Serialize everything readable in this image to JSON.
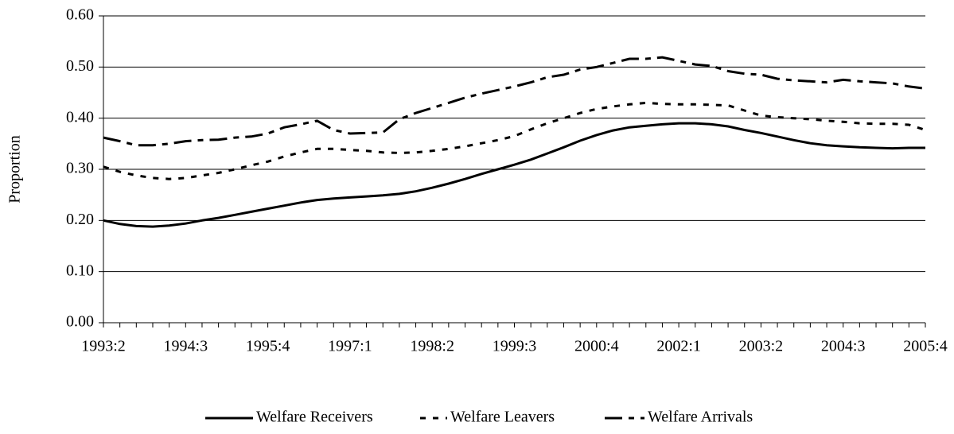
{
  "chart_data": {
    "type": "line",
    "y_label": "Proportion",
    "categories": [
      "1993:2",
      null,
      null,
      null,
      null,
      "1994:3",
      null,
      null,
      null,
      null,
      "1995:4",
      null,
      null,
      null,
      null,
      "1997:1",
      null,
      null,
      null,
      null,
      "1998:2",
      null,
      null,
      null,
      null,
      "1999:3",
      null,
      null,
      null,
      null,
      "2000:4",
      null,
      null,
      null,
      null,
      "2002:1",
      null,
      null,
      null,
      null,
      "2003:2",
      null,
      null,
      null,
      null,
      "2004:3",
      null,
      null,
      null,
      null,
      "2005:4"
    ],
    "ylim": [
      0,
      0.6
    ],
    "yticks": [
      {
        "value": 0,
        "label": "0.00"
      },
      {
        "value": 0.1,
        "label": "0.10"
      },
      {
        "value": 0.2,
        "label": "0.20"
      },
      {
        "value": 0.3,
        "label": "0.30"
      },
      {
        "value": 0.4,
        "label": "0.40"
      },
      {
        "value": 0.5,
        "label": "0.50"
      },
      {
        "value": 0.6,
        "label": "0.60"
      }
    ],
    "grid": true,
    "legend": "bottom",
    "series": [
      {
        "name": "Welfare Receivers",
        "color": "#000000",
        "dash": "solid",
        "values": [
          0.2,
          0.193,
          0.189,
          0.188,
          0.19,
          0.194,
          0.2,
          0.205,
          0.211,
          0.217,
          0.223,
          0.229,
          0.235,
          0.24,
          0.243,
          0.245,
          0.247,
          0.249,
          0.252,
          0.257,
          0.264,
          0.272,
          0.281,
          0.291,
          0.3,
          0.309,
          0.319,
          0.331,
          0.343,
          0.356,
          0.367,
          0.376,
          0.382,
          0.385,
          0.388,
          0.39,
          0.39,
          0.388,
          0.384,
          0.377,
          0.371,
          0.364,
          0.357,
          0.351,
          0.347,
          0.345,
          0.343,
          0.342,
          0.341,
          0.342,
          0.342
        ]
      },
      {
        "name": "Welfare Leavers",
        "color": "#000000",
        "dash": "short",
        "values": [
          0.305,
          0.295,
          0.288,
          0.283,
          0.281,
          0.283,
          0.288,
          0.293,
          0.3,
          0.308,
          0.315,
          0.325,
          0.333,
          0.34,
          0.34,
          0.338,
          0.336,
          0.333,
          0.332,
          0.333,
          0.336,
          0.34,
          0.345,
          0.351,
          0.357,
          0.365,
          0.378,
          0.39,
          0.4,
          0.41,
          0.418,
          0.423,
          0.427,
          0.43,
          0.428,
          0.427,
          0.427,
          0.426,
          0.425,
          0.415,
          0.405,
          0.402,
          0.4,
          0.398,
          0.395,
          0.393,
          0.39,
          0.389,
          0.389,
          0.387,
          0.377
        ]
      },
      {
        "name": "Welfare Arrivals",
        "color": "#000000",
        "dash": "long",
        "values": [
          0.362,
          0.355,
          0.347,
          0.347,
          0.35,
          0.355,
          0.357,
          0.358,
          0.362,
          0.364,
          0.37,
          0.382,
          0.388,
          0.395,
          0.377,
          0.37,
          0.371,
          0.372,
          0.398,
          0.41,
          0.42,
          0.43,
          0.44,
          0.448,
          0.455,
          0.462,
          0.47,
          0.48,
          0.485,
          0.495,
          0.5,
          0.508,
          0.516,
          0.516,
          0.519,
          0.512,
          0.505,
          0.502,
          0.492,
          0.487,
          0.485,
          0.477,
          0.474,
          0.472,
          0.47,
          0.475,
          0.472,
          0.47,
          0.468,
          0.462,
          0.458
        ]
      }
    ]
  }
}
